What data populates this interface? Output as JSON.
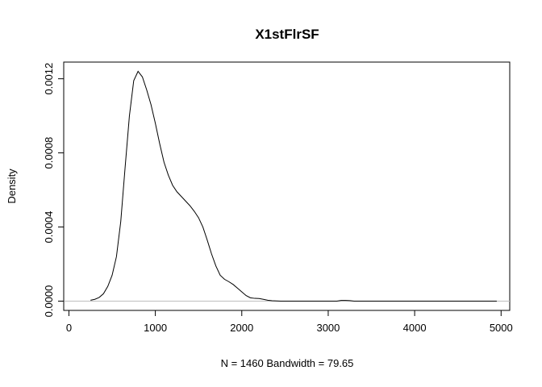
{
  "chart_data": {
    "type": "line",
    "title": "X1stFlrSF",
    "xlabel": "N = 1460   Bandwidth = 79.65",
    "ylabel": "Density",
    "xlim": [
      -60,
      5100
    ],
    "ylim": [
      -5e-05,
      0.00129
    ],
    "xticks": [
      0,
      1000,
      2000,
      3000,
      4000,
      5000
    ],
    "xtick_labels": [
      "0",
      "1000",
      "2000",
      "3000",
      "4000",
      "5000"
    ],
    "yticks": [
      0,
      0.0004,
      0.0008,
      0.0012
    ],
    "ytick_labels": [
      "0.0000",
      "0.0004",
      "0.0008",
      "0.0012"
    ],
    "baseline": {
      "y": 0,
      "color": "#bebebe"
    },
    "grid": false,
    "legend": "none",
    "series": [
      {
        "color": "#000000",
        "x": [
          250,
          300,
          350,
          400,
          450,
          500,
          550,
          600,
          650,
          700,
          750,
          800,
          850,
          900,
          950,
          1000,
          1050,
          1100,
          1150,
          1200,
          1250,
          1300,
          1350,
          1400,
          1450,
          1500,
          1550,
          1600,
          1650,
          1700,
          1750,
          1800,
          1850,
          1900,
          1950,
          2000,
          2050,
          2100,
          2150,
          2200,
          2250,
          2300,
          2350,
          2400,
          2450,
          2500,
          2550,
          2600,
          2650,
          2700,
          2750,
          2800,
          2900,
          3000,
          3100,
          3150,
          3200,
          3250,
          3300,
          3400,
          3600,
          3800,
          4000,
          4200,
          4400,
          4600,
          4800,
          4950
        ],
        "y": [
          5e-06,
          1e-05,
          2e-05,
          4e-05,
          8e-05,
          0.00014,
          0.00024,
          0.00043,
          0.00072,
          0.001,
          0.00119,
          0.00124,
          0.00121,
          0.00114,
          0.00106,
          0.00096,
          0.00085,
          0.00075,
          0.00068,
          0.000625,
          0.00059,
          0.000565,
          0.00054,
          0.000515,
          0.000485,
          0.00045,
          0.0004,
          0.00033,
          0.000255,
          0.00019,
          0.00014,
          0.000118,
          0.000105,
          9e-05,
          7e-05,
          5e-05,
          3e-05,
          1.8e-05,
          1.5e-05,
          1.4e-05,
          1e-05,
          5e-06,
          2e-06,
          1e-06,
          0,
          0,
          0,
          0,
          0,
          0,
          0,
          0,
          0,
          0,
          0,
          4e-06,
          4e-06,
          3e-06,
          0,
          0,
          0,
          0,
          0,
          0,
          0,
          0,
          0,
          0
        ]
      }
    ]
  }
}
